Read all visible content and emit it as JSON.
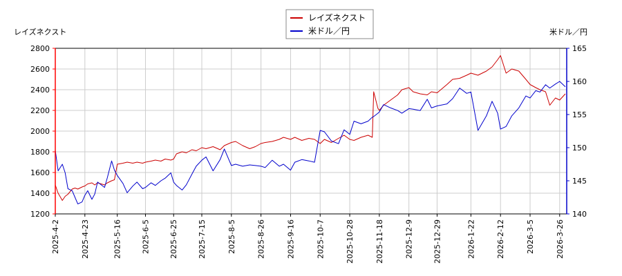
{
  "chart_data": {
    "type": "line",
    "left_axis_label": "レイズネクスト",
    "right_axis_label": "米ドル／円",
    "legend_placement": "top-center",
    "grid": true,
    "x_ticks": [
      "2025-4-2",
      "2025-4-23",
      "2025-5-16",
      "2025-6-5",
      "2025-6-25",
      "2025-7-15",
      "2025-8-5",
      "2025-8-26",
      "2025-9-16",
      "2025-10-7",
      "2025-10-28",
      "2025-11-18",
      "2025-12-9",
      "2025-12-29",
      "2026-1-22",
      "2026-2-12",
      "2026-3-5",
      "2026-3-26"
    ],
    "y_left": {
      "min": 1200,
      "max": 2800,
      "ticks": [
        1200,
        1400,
        1600,
        1800,
        2000,
        2200,
        2400,
        2600,
        2800
      ],
      "color": "#ff0000"
    },
    "y_right": {
      "min": 140,
      "max": 165,
      "ticks": [
        140,
        145,
        150,
        155,
        160,
        165
      ],
      "color": "#0000cc"
    },
    "series": [
      {
        "name": "レイズネクスト",
        "axis": "left",
        "color": "#cc0000",
        "points": [
          [
            "2025-4-2",
            1480
          ],
          [
            "2025-4-4",
            1400
          ],
          [
            "2025-4-7",
            1330
          ],
          [
            "2025-4-9",
            1370
          ],
          [
            "2025-4-11",
            1390
          ],
          [
            "2025-4-14",
            1440
          ],
          [
            "2025-4-16",
            1450
          ],
          [
            "2025-4-18",
            1440
          ],
          [
            "2025-4-21",
            1460
          ],
          [
            "2025-4-23",
            1470
          ],
          [
            "2025-4-25",
            1490
          ],
          [
            "2025-4-28",
            1500
          ],
          [
            "2025-4-30",
            1480
          ],
          [
            "2025-5-2",
            1500
          ],
          [
            "2025-5-7",
            1480
          ],
          [
            "2025-5-9",
            1500
          ],
          [
            "2025-5-12",
            1520
          ],
          [
            "2025-5-14",
            1530
          ],
          [
            "2025-5-16",
            1680
          ],
          [
            "2025-5-20",
            1690
          ],
          [
            "2025-5-23",
            1700
          ],
          [
            "2025-5-27",
            1690
          ],
          [
            "2025-5-30",
            1700
          ],
          [
            "2025-6-3",
            1690
          ],
          [
            "2025-6-5",
            1700
          ],
          [
            "2025-6-9",
            1710
          ],
          [
            "2025-6-12",
            1720
          ],
          [
            "2025-6-16",
            1710
          ],
          [
            "2025-6-19",
            1730
          ],
          [
            "2025-6-23",
            1720
          ],
          [
            "2025-6-25",
            1730
          ],
          [
            "2025-6-27",
            1780
          ],
          [
            "2025-7-1",
            1800
          ],
          [
            "2025-7-4",
            1790
          ],
          [
            "2025-7-8",
            1820
          ],
          [
            "2025-7-11",
            1810
          ],
          [
            "2025-7-15",
            1840
          ],
          [
            "2025-7-18",
            1830
          ],
          [
            "2025-7-23",
            1850
          ],
          [
            "2025-7-28",
            1820
          ],
          [
            "2025-7-31",
            1860
          ],
          [
            "2025-8-5",
            1890
          ],
          [
            "2025-8-8",
            1900
          ],
          [
            "2025-8-13",
            1860
          ],
          [
            "2025-8-18",
            1830
          ],
          [
            "2025-8-22",
            1850
          ],
          [
            "2025-8-26",
            1880
          ],
          [
            "2025-8-29",
            1890
          ],
          [
            "2025-9-3",
            1900
          ],
          [
            "2025-9-8",
            1920
          ],
          [
            "2025-9-11",
            1940
          ],
          [
            "2025-9-16",
            1920
          ],
          [
            "2025-9-19",
            1940
          ],
          [
            "2025-9-24",
            1910
          ],
          [
            "2025-9-29",
            1930
          ],
          [
            "2025-10-3",
            1920
          ],
          [
            "2025-10-7",
            1880
          ],
          [
            "2025-10-10",
            1920
          ],
          [
            "2025-10-15",
            1890
          ],
          [
            "2025-10-20",
            1930
          ],
          [
            "2025-10-24",
            1960
          ],
          [
            "2025-10-28",
            1920
          ],
          [
            "2025-10-31",
            1910
          ],
          [
            "2025-11-5",
            1940
          ],
          [
            "2025-11-10",
            1960
          ],
          [
            "2025-11-13",
            1940
          ],
          [
            "2025-11-14",
            2380
          ],
          [
            "2025-11-17",
            2220
          ],
          [
            "2025-11-18",
            2200
          ],
          [
            "2025-11-21",
            2250
          ],
          [
            "2025-11-26",
            2300
          ],
          [
            "2025-12-1",
            2350
          ],
          [
            "2025-12-4",
            2400
          ],
          [
            "2025-12-9",
            2420
          ],
          [
            "2025-12-12",
            2380
          ],
          [
            "2025-12-17",
            2360
          ],
          [
            "2025-12-22",
            2350
          ],
          [
            "2025-12-25",
            2380
          ],
          [
            "2025-12-29",
            2370
          ],
          [
            "2026-1-5",
            2450
          ],
          [
            "2026-1-9",
            2500
          ],
          [
            "2026-1-14",
            2510
          ],
          [
            "2026-1-19",
            2540
          ],
          [
            "2026-1-22",
            2560
          ],
          [
            "2026-1-27",
            2540
          ],
          [
            "2026-2-2",
            2580
          ],
          [
            "2026-2-6",
            2620
          ],
          [
            "2026-2-10",
            2690
          ],
          [
            "2026-2-12",
            2730
          ],
          [
            "2026-2-16",
            2560
          ],
          [
            "2026-2-20",
            2600
          ],
          [
            "2026-2-25",
            2580
          ],
          [
            "2026-3-2",
            2500
          ],
          [
            "2026-3-5",
            2450
          ],
          [
            "2026-3-9",
            2420
          ],
          [
            "2026-3-12",
            2400
          ],
          [
            "2026-3-16",
            2380
          ],
          [
            "2026-3-19",
            2250
          ],
          [
            "2026-3-23",
            2320
          ],
          [
            "2026-3-26",
            2300
          ],
          [
            "2026-3-30",
            2360
          ]
        ]
      },
      {
        "name": "米ドル／円",
        "axis": "right",
        "color": "#0000cc",
        "points": [
          [
            "2025-4-2",
            149.6
          ],
          [
            "2025-4-4",
            146.5
          ],
          [
            "2025-4-7",
            147.5
          ],
          [
            "2025-4-9",
            146.2
          ],
          [
            "2025-4-11",
            143.8
          ],
          [
            "2025-4-14",
            143.5
          ],
          [
            "2025-4-16",
            142.5
          ],
          [
            "2025-4-18",
            141.5
          ],
          [
            "2025-4-21",
            141.8
          ],
          [
            "2025-4-23",
            142.8
          ],
          [
            "2025-4-25",
            143.5
          ],
          [
            "2025-4-28",
            142.2
          ],
          [
            "2025-4-30",
            143.0
          ],
          [
            "2025-5-2",
            144.8
          ],
          [
            "2025-5-7",
            144.0
          ],
          [
            "2025-5-9",
            145.5
          ],
          [
            "2025-5-12",
            148.0
          ],
          [
            "2025-5-14",
            146.6
          ],
          [
            "2025-5-16",
            145.8
          ],
          [
            "2025-5-20",
            144.6
          ],
          [
            "2025-5-23",
            143.2
          ],
          [
            "2025-5-27",
            144.2
          ],
          [
            "2025-5-30",
            144.8
          ],
          [
            "2025-6-3",
            143.8
          ],
          [
            "2025-6-5",
            144.0
          ],
          [
            "2025-6-9",
            144.7
          ],
          [
            "2025-6-12",
            144.3
          ],
          [
            "2025-6-16",
            145.0
          ],
          [
            "2025-6-19",
            145.4
          ],
          [
            "2025-6-23",
            146.2
          ],
          [
            "2025-6-25",
            144.8
          ],
          [
            "2025-6-27",
            144.3
          ],
          [
            "2025-7-1",
            143.6
          ],
          [
            "2025-7-4",
            144.4
          ],
          [
            "2025-7-8",
            146.0
          ],
          [
            "2025-7-11",
            147.2
          ],
          [
            "2025-7-15",
            148.1
          ],
          [
            "2025-7-18",
            148.6
          ],
          [
            "2025-7-23",
            146.5
          ],
          [
            "2025-7-28",
            148.2
          ],
          [
            "2025-7-31",
            149.8
          ],
          [
            "2025-8-5",
            147.3
          ],
          [
            "2025-8-8",
            147.5
          ],
          [
            "2025-8-13",
            147.2
          ],
          [
            "2025-8-18",
            147.4
          ],
          [
            "2025-8-22",
            147.3
          ],
          [
            "2025-8-26",
            147.2
          ],
          [
            "2025-8-29",
            147.0
          ],
          [
            "2025-9-3",
            148.1
          ],
          [
            "2025-9-8",
            147.2
          ],
          [
            "2025-9-11",
            147.5
          ],
          [
            "2025-9-16",
            146.6
          ],
          [
            "2025-9-19",
            147.8
          ],
          [
            "2025-9-24",
            148.2
          ],
          [
            "2025-9-29",
            148.0
          ],
          [
            "2025-10-3",
            147.8
          ],
          [
            "2025-10-7",
            152.6
          ],
          [
            "2025-10-10",
            152.4
          ],
          [
            "2025-10-15",
            151.0
          ],
          [
            "2025-10-20",
            150.6
          ],
          [
            "2025-10-24",
            152.7
          ],
          [
            "2025-10-28",
            152.0
          ],
          [
            "2025-10-31",
            154.0
          ],
          [
            "2025-11-5",
            153.6
          ],
          [
            "2025-11-10",
            154.0
          ],
          [
            "2025-11-13",
            154.6
          ],
          [
            "2025-11-14",
            154.7
          ],
          [
            "2025-11-17",
            155.2
          ],
          [
            "2025-11-18",
            155.4
          ],
          [
            "2025-11-21",
            156.5
          ],
          [
            "2025-11-26",
            156.0
          ],
          [
            "2025-12-1",
            155.6
          ],
          [
            "2025-12-4",
            155.2
          ],
          [
            "2025-12-9",
            155.9
          ],
          [
            "2025-12-12",
            155.8
          ],
          [
            "2025-12-17",
            155.6
          ],
          [
            "2025-12-22",
            157.3
          ],
          [
            "2025-12-25",
            156.0
          ],
          [
            "2025-12-29",
            156.3
          ],
          [
            "2026-1-5",
            156.6
          ],
          [
            "2026-1-9",
            157.4
          ],
          [
            "2026-1-14",
            159.0
          ],
          [
            "2026-1-19",
            158.2
          ],
          [
            "2026-1-22",
            158.4
          ],
          [
            "2026-1-27",
            152.6
          ],
          [
            "2026-2-2",
            154.8
          ],
          [
            "2026-2-6",
            157.0
          ],
          [
            "2026-2-10",
            155.2
          ],
          [
            "2026-2-12",
            152.8
          ],
          [
            "2026-2-16",
            153.2
          ],
          [
            "2026-2-20",
            154.8
          ],
          [
            "2026-2-25",
            156.0
          ],
          [
            "2026-3-2",
            157.8
          ],
          [
            "2026-3-5",
            157.5
          ],
          [
            "2026-3-9",
            158.6
          ],
          [
            "2026-3-12",
            158.4
          ],
          [
            "2026-3-16",
            159.5
          ],
          [
            "2026-3-19",
            159.0
          ],
          [
            "2026-3-23",
            159.6
          ],
          [
            "2026-3-26",
            160.0
          ],
          [
            "2026-3-30",
            159.2
          ]
        ]
      }
    ]
  }
}
